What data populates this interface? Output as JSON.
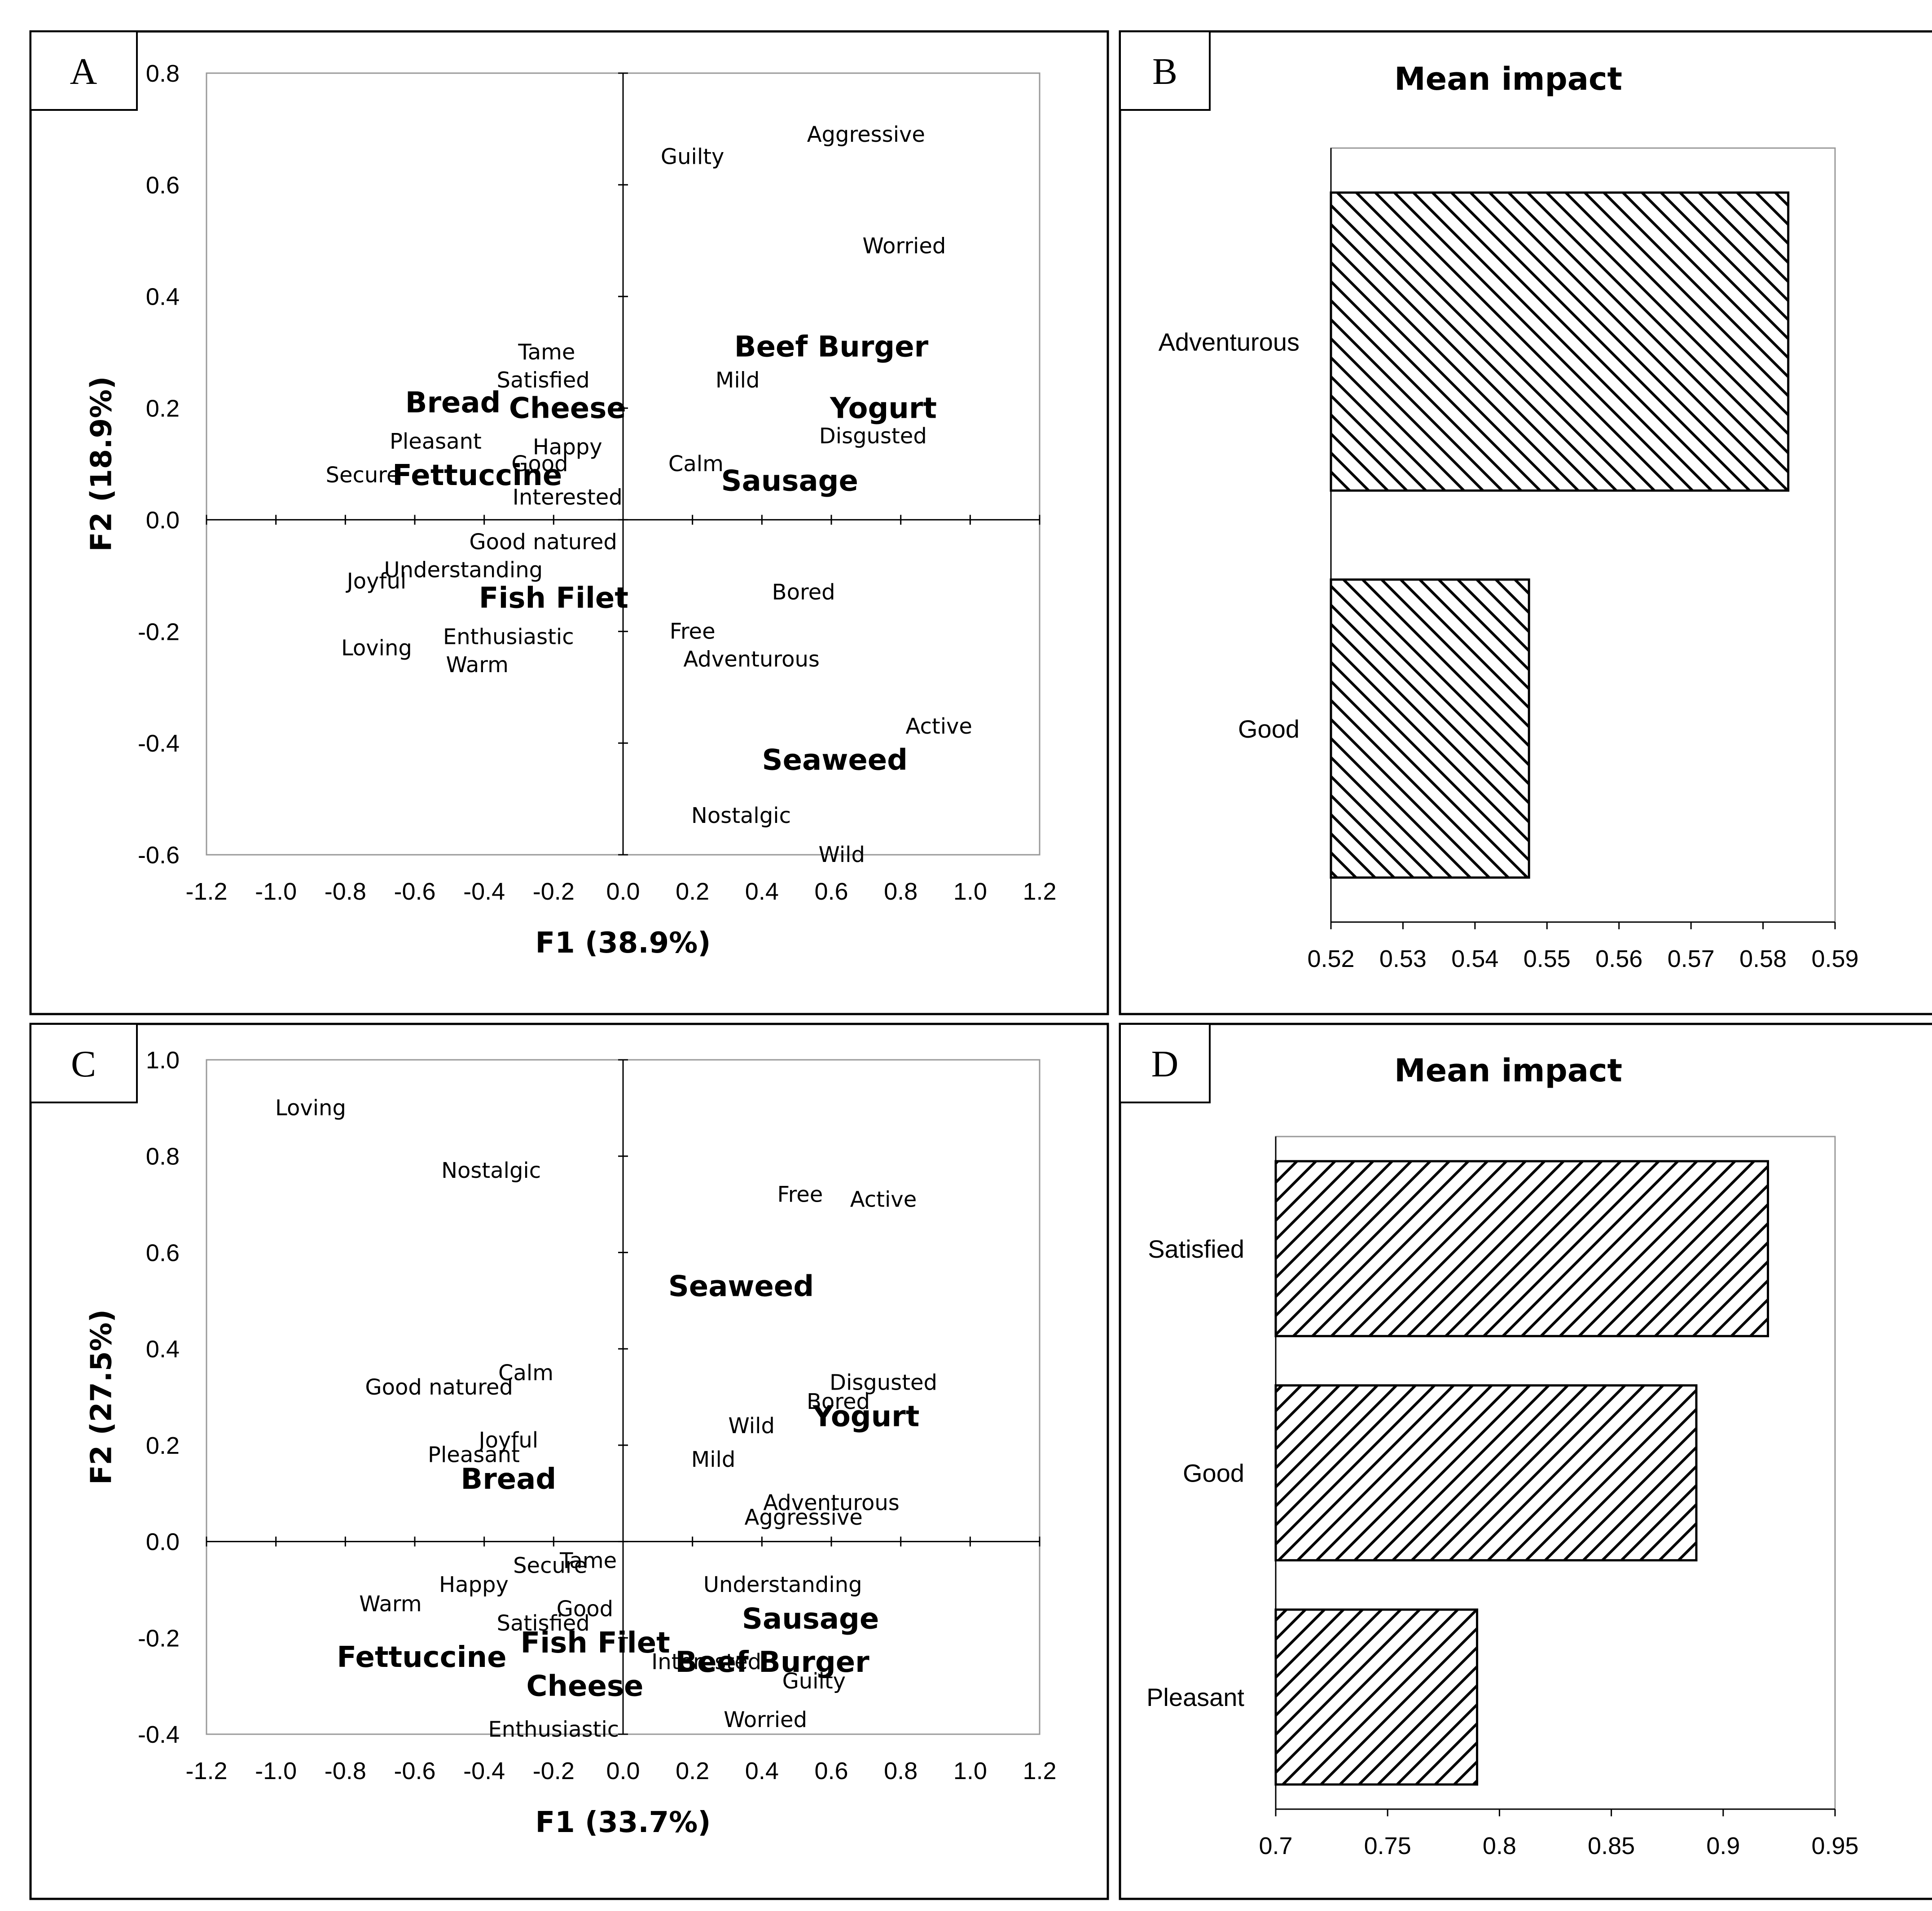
{
  "chart_data": [
    {
      "panel": "A",
      "type": "scatter",
      "xlabel": "F1 (38.9%)",
      "ylabel": "F2 (18.9%)",
      "xlim": [
        -1.2,
        1.2
      ],
      "ylim": [
        -0.6,
        0.8
      ],
      "xticks": [
        "-1.2",
        "-1.0",
        "-0.8",
        "-0.6",
        "-0.4",
        "-0.2",
        "0.0",
        "0.2",
        "0.4",
        "0.6",
        "0.8",
        "1.0",
        "1.2"
      ],
      "yticks": [
        "-0.6",
        "-0.4",
        "-0.2",
        "0.0",
        "0.2",
        "0.4",
        "0.6",
        "0.8"
      ],
      "attributes": [
        {
          "label": "Aggressive",
          "x": 0.7,
          "y": 0.69
        },
        {
          "label": "Guilty",
          "x": 0.2,
          "y": 0.65
        },
        {
          "label": "Worried",
          "x": 0.81,
          "y": 0.49
        },
        {
          "label": "Tame",
          "x": -0.22,
          "y": 0.3
        },
        {
          "label": "Satisfied",
          "x": -0.23,
          "y": 0.25
        },
        {
          "label": "Mild",
          "x": 0.33,
          "y": 0.25
        },
        {
          "label": "Pleasant",
          "x": -0.54,
          "y": 0.14
        },
        {
          "label": "Happy",
          "x": -0.16,
          "y": 0.13
        },
        {
          "label": "Disgusted",
          "x": 0.72,
          "y": 0.15
        },
        {
          "label": "Good",
          "x": -0.24,
          "y": 0.1
        },
        {
          "label": "Calm",
          "x": 0.21,
          "y": 0.1
        },
        {
          "label": "Secure",
          "x": -0.75,
          "y": 0.08
        },
        {
          "label": "Interested",
          "x": -0.16,
          "y": 0.04
        },
        {
          "label": "Good natured",
          "x": -0.23,
          "y": -0.04
        },
        {
          "label": "Understanding",
          "x": -0.46,
          "y": -0.09
        },
        {
          "label": "Joyful",
          "x": -0.71,
          "y": -0.11
        },
        {
          "label": "Bored",
          "x": 0.52,
          "y": -0.13
        },
        {
          "label": "Free",
          "x": 0.2,
          "y": -0.2
        },
        {
          "label": "Enthusiastic",
          "x": -0.33,
          "y": -0.21
        },
        {
          "label": "Loving",
          "x": -0.71,
          "y": -0.23
        },
        {
          "label": "Adventurous",
          "x": 0.37,
          "y": -0.25
        },
        {
          "label": "Warm",
          "x": -0.42,
          "y": -0.26
        },
        {
          "label": "Active",
          "x": 0.91,
          "y": -0.37
        },
        {
          "label": "Nostalgic",
          "x": 0.34,
          "y": -0.53
        },
        {
          "label": "Wild",
          "x": 0.63,
          "y": -0.6
        }
      ],
      "products": [
        {
          "label": "Beef Burger",
          "x": 0.6,
          "y": 0.31
        },
        {
          "label": "Bread",
          "x": -0.49,
          "y": 0.21
        },
        {
          "label": "Cheese",
          "x": -0.16,
          "y": 0.2
        },
        {
          "label": "Yogurt",
          "x": 0.75,
          "y": 0.2
        },
        {
          "label": "Fettuccine",
          "x": -0.42,
          "y": 0.08
        },
        {
          "label": "Sausage",
          "x": 0.48,
          "y": 0.07
        },
        {
          "label": "Fish Filet",
          "x": -0.2,
          "y": -0.14
        },
        {
          "label": "Seaweed",
          "x": 0.61,
          "y": -0.43
        }
      ]
    },
    {
      "panel": "B",
      "type": "bar",
      "orientation": "horizontal",
      "title": "Mean impact",
      "categories": [
        "Adventurous",
        "Good"
      ],
      "values": [
        0.5835,
        0.5475
      ],
      "xlim": [
        0.52,
        0.59
      ],
      "xticks": [
        "0.52",
        "0.53",
        "0.54",
        "0.55",
        "0.56",
        "0.57",
        "0.58",
        "0.59"
      ],
      "pattern": "diagonal-hatch-backslash"
    },
    {
      "panel": "C",
      "type": "scatter",
      "xlabel": "F1 (33.7%)",
      "ylabel": "F2 (27.5%)",
      "xlim": [
        -1.2,
        1.2
      ],
      "ylim": [
        -0.4,
        1.0
      ],
      "xticks": [
        "-1.2",
        "-1.0",
        "-0.8",
        "-0.6",
        "-0.4",
        "-0.2",
        "0.0",
        "0.2",
        "0.4",
        "0.6",
        "0.8",
        "1.0",
        "1.2"
      ],
      "yticks": [
        "-0.4",
        "-0.2",
        "0.0",
        "0.2",
        "0.4",
        "0.6",
        "0.8",
        "1.0"
      ],
      "attributes": [
        {
          "label": "Loving",
          "x": -0.9,
          "y": 0.9
        },
        {
          "label": "Nostalgic",
          "x": -0.38,
          "y": 0.77
        },
        {
          "label": "Free",
          "x": 0.51,
          "y": 0.72
        },
        {
          "label": "Active",
          "x": 0.75,
          "y": 0.71
        },
        {
          "label": "Calm",
          "x": -0.28,
          "y": 0.35
        },
        {
          "label": "Good natured",
          "x": -0.53,
          "y": 0.32
        },
        {
          "label": "Disgusted",
          "x": 0.75,
          "y": 0.33
        },
        {
          "label": "Bored",
          "x": 0.62,
          "y": 0.29
        },
        {
          "label": "Wild",
          "x": 0.37,
          "y": 0.24
        },
        {
          "label": "Joyful",
          "x": -0.33,
          "y": 0.21
        },
        {
          "label": "Pleasant",
          "x": -0.43,
          "y": 0.18
        },
        {
          "label": "Mild",
          "x": 0.26,
          "y": 0.17
        },
        {
          "label": "Adventurous",
          "x": 0.6,
          "y": 0.08
        },
        {
          "label": "Aggressive",
          "x": 0.52,
          "y": 0.05
        },
        {
          "label": "Tame",
          "x": -0.1,
          "y": -0.04
        },
        {
          "label": "Secure",
          "x": -0.21,
          "y": -0.05
        },
        {
          "label": "Understanding",
          "x": 0.46,
          "y": -0.09
        },
        {
          "label": "Happy",
          "x": -0.43,
          "y": -0.09
        },
        {
          "label": "Warm",
          "x": -0.67,
          "y": -0.13
        },
        {
          "label": "Good",
          "x": -0.11,
          "y": -0.14
        },
        {
          "label": "Satisfied",
          "x": -0.23,
          "y": -0.17
        },
        {
          "label": "Interested",
          "x": 0.24,
          "y": -0.25
        },
        {
          "label": "Guilty",
          "x": 0.55,
          "y": -0.29
        },
        {
          "label": "Enthusiastic",
          "x": -0.2,
          "y": -0.39
        },
        {
          "label": "Worried",
          "x": 0.41,
          "y": -0.37
        }
      ],
      "products": [
        {
          "label": "Seaweed",
          "x": 0.34,
          "y": 0.53
        },
        {
          "label": "Yogurt",
          "x": 0.7,
          "y": 0.26
        },
        {
          "label": "Bread",
          "x": -0.33,
          "y": 0.13
        },
        {
          "label": "Sausage",
          "x": 0.54,
          "y": -0.16
        },
        {
          "label": "Fish Filet",
          "x": -0.08,
          "y": -0.21
        },
        {
          "label": "Fettuccine",
          "x": -0.58,
          "y": -0.24
        },
        {
          "label": "Beef Burger",
          "x": 0.43,
          "y": -0.25
        },
        {
          "label": "Cheese",
          "x": -0.11,
          "y": -0.3
        }
      ]
    },
    {
      "panel": "D",
      "type": "bar",
      "orientation": "horizontal",
      "title": "Mean impact",
      "categories": [
        "Satisfied",
        "Good",
        "Pleasant"
      ],
      "values": [
        0.92,
        0.888,
        0.79
      ],
      "xlim": [
        0.7,
        0.95
      ],
      "xticks": [
        "0.7",
        "0.75",
        "0.8",
        "0.85",
        "0.9",
        "0.95"
      ],
      "pattern": "diagonal-hatch-slash"
    }
  ]
}
